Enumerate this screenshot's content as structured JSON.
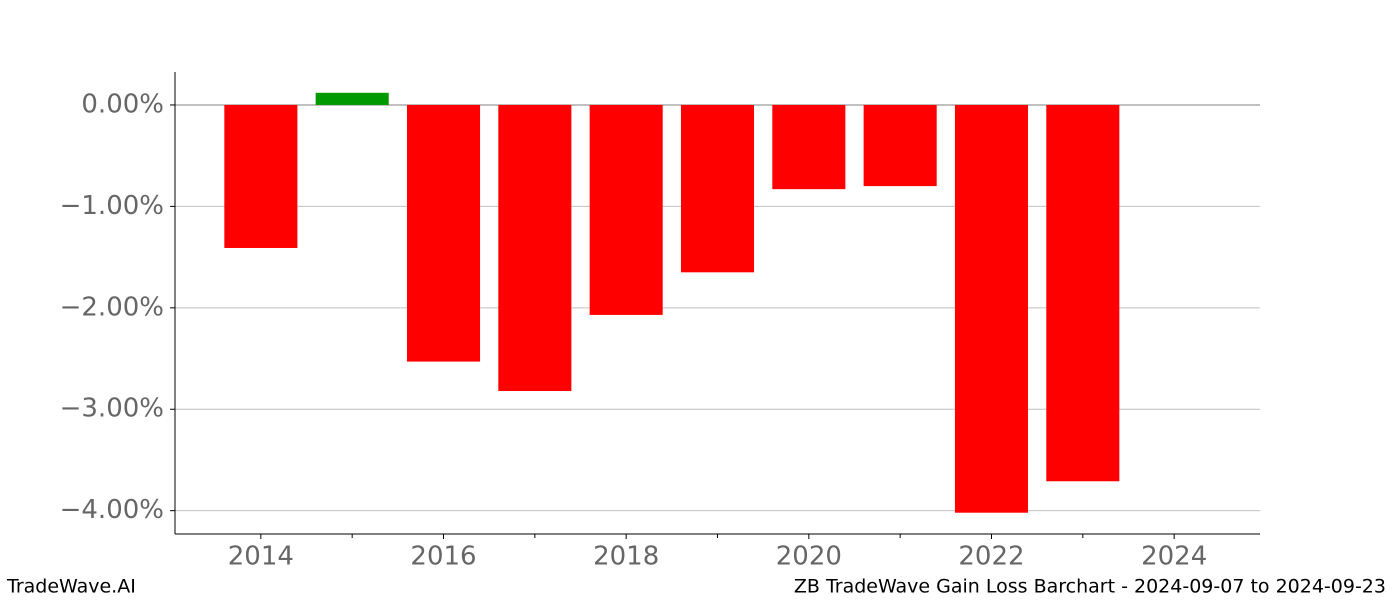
{
  "chart_data": {
    "type": "bar",
    "title": "ZB TradeWave Gain Loss Barchart - 2024-09-07 to 2024-09-23",
    "watermark": "TradeWave.AI",
    "x": [
      2014,
      2015,
      2016,
      2017,
      2018,
      2019,
      2020,
      2021,
      2022,
      2023,
      2024
    ],
    "values": [
      -1.41,
      0.12,
      -2.53,
      -2.82,
      -2.07,
      -1.65,
      -0.83,
      -0.8,
      -4.02,
      -3.71,
      0
    ],
    "colors": [
      "#ff0000",
      "#009900",
      "#ff0000",
      "#ff0000",
      "#ff0000",
      "#ff0000",
      "#ff0000",
      "#ff0000",
      "#ff0000",
      "#ff0000",
      "#ff0000"
    ],
    "bar_width": 0.8,
    "xlim": [
      2013.06,
      2024.94
    ],
    "xticks": [
      2014,
      2016,
      2018,
      2020,
      2022,
      2024
    ],
    "xminorticks": [
      2015,
      2017,
      2019,
      2021,
      2023
    ],
    "ylim": [
      -4.23,
      0.325
    ],
    "yticks": [
      {
        "value": 0,
        "label": "0.00%"
      },
      {
        "value": -1,
        "label": "−1.00%"
      },
      {
        "value": -2,
        "label": "−2.00%"
      },
      {
        "value": -3,
        "label": "−3.00%"
      },
      {
        "value": -4,
        "label": "−4.00%"
      }
    ],
    "grid": true
  }
}
